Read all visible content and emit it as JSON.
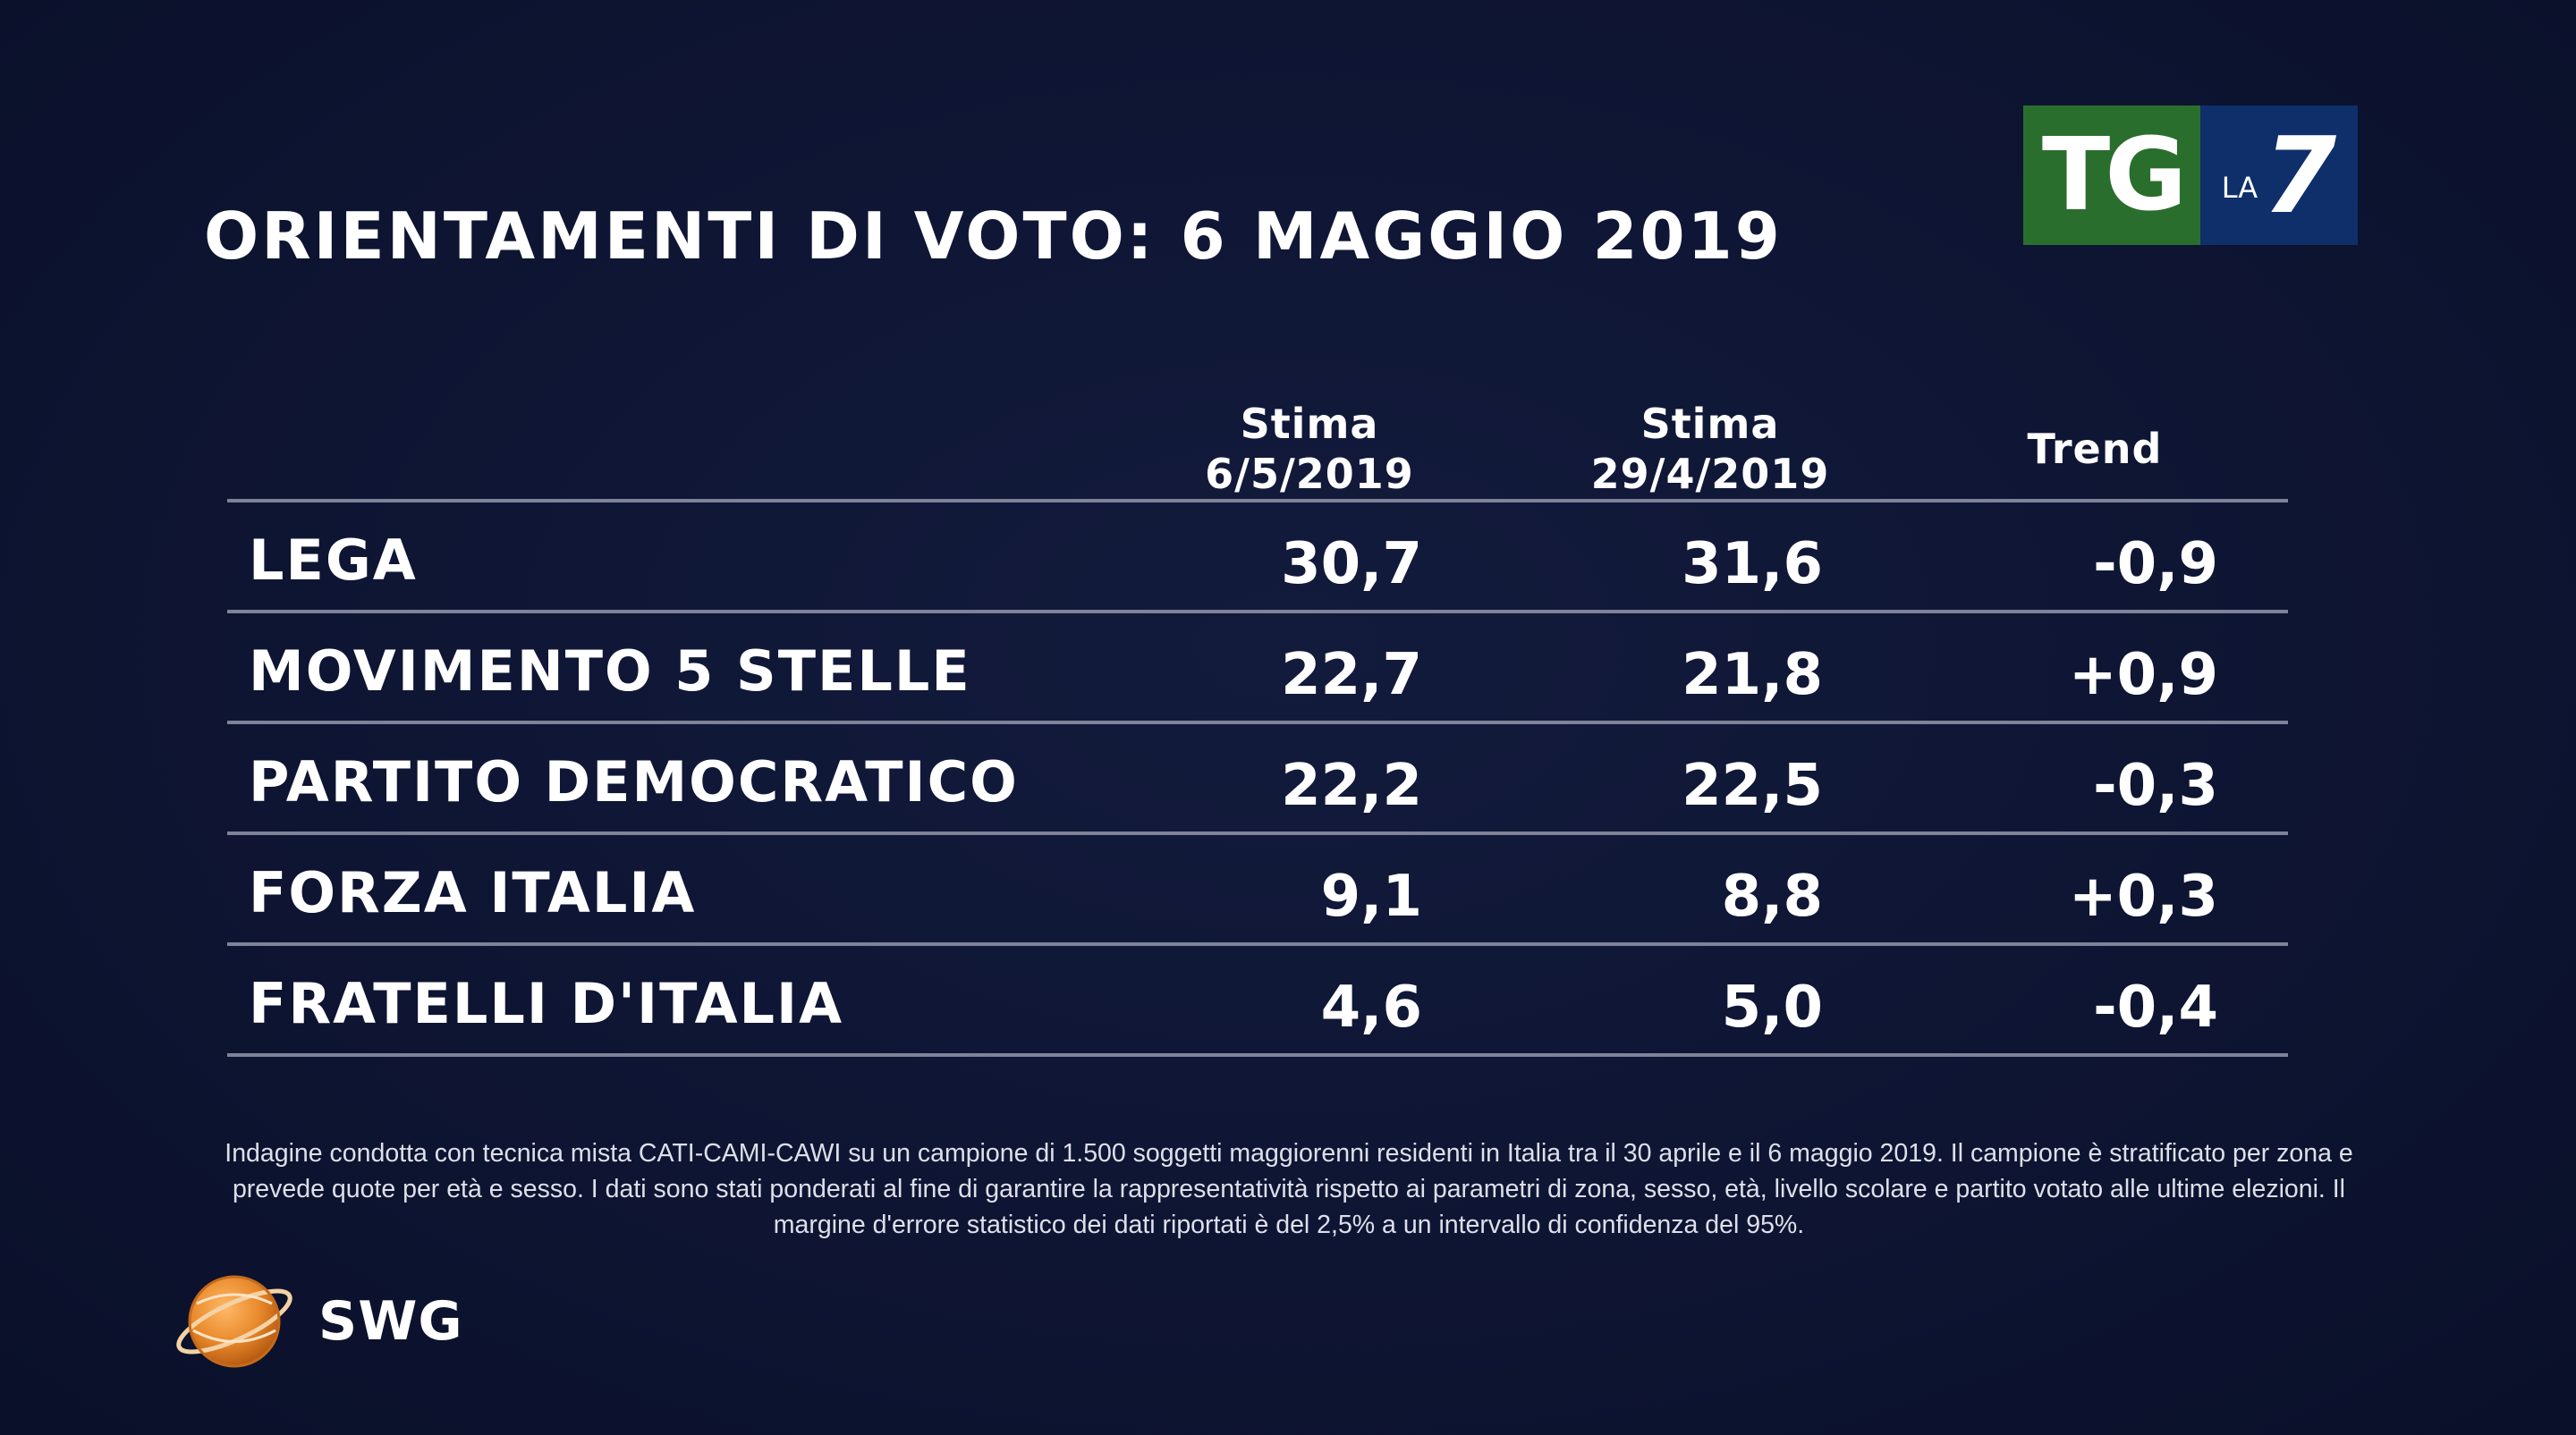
{
  "title": "ORIENTAMENTI DI VOTO: 6 MAGGIO 2019",
  "logo": {
    "tg": "TG",
    "la": "LA",
    "seven": "7",
    "colors": {
      "tg_bg": "#2a6e2e",
      "la7_bg": "#0f2f6b"
    }
  },
  "table": {
    "headers": {
      "col1_line1": "Stima",
      "col1_line2": "6/5/2019",
      "col2_line1": "Stima",
      "col2_line2": "29/4/2019",
      "col3": "Trend"
    },
    "rows": [
      {
        "party": "LEGA",
        "stima_6_5": "30,7",
        "stima_29_4": "31,6",
        "trend": "-0,9"
      },
      {
        "party": "MOVIMENTO 5 STELLE",
        "stima_6_5": "22,7",
        "stima_29_4": "21,8",
        "trend": "+0,9"
      },
      {
        "party": "PARTITO DEMOCRATICO",
        "stima_6_5": "22,2",
        "stima_29_4": "22,5",
        "trend": "-0,3"
      },
      {
        "party": "FORZA ITALIA",
        "stima_6_5": "9,1",
        "stima_29_4": "8,8",
        "trend": "+0,3"
      },
      {
        "party": "FRATELLI D'ITALIA",
        "stima_6_5": "4,6",
        "stima_29_4": "5,0",
        "trend": "-0,4"
      }
    ]
  },
  "footnote": "Indagine condotta con tecnica mista CATI-CAMI-CAWI su un campione di 1.500 soggetti maggiorenni residenti in Italia tra il 30 aprile e il 6 maggio 2019. Il campione è stratificato per zona e prevede quote per età e sesso. I dati sono stati ponderati al fine di garantire la rappresentatività rispetto ai parametri di zona, sesso, età, livello scolare e partito votato alle ultime elezioni. Il margine d'errore statistico dei dati riportati è del 2,5% a un intervallo di confidenza del 95%.",
  "brand": {
    "name": "SWG",
    "globe_color": "#e8892b"
  },
  "chart_data": {
    "type": "table",
    "title": "ORIENTAMENTI DI VOTO: 6 MAGGIO 2019",
    "columns": [
      "Stima 6/5/2019",
      "Stima 29/4/2019",
      "Trend"
    ],
    "categories": [
      "LEGA",
      "MOVIMENTO 5 STELLE",
      "PARTITO DEMOCRATICO",
      "FORZA ITALIA",
      "FRATELLI D'ITALIA"
    ],
    "series": [
      {
        "name": "Stima 6/5/2019",
        "values": [
          30.7,
          22.7,
          22.2,
          9.1,
          4.6
        ]
      },
      {
        "name": "Stima 29/4/2019",
        "values": [
          31.6,
          21.8,
          22.5,
          8.8,
          5.0
        ]
      },
      {
        "name": "Trend",
        "values": [
          -0.9,
          0.9,
          -0.3,
          0.3,
          -0.4
        ]
      }
    ]
  }
}
